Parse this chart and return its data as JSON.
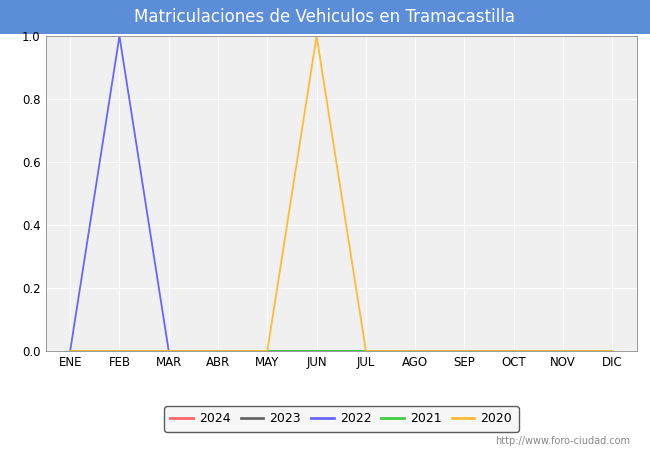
{
  "title": "Matriculaciones de Vehiculos en Tramacastilla",
  "title_bg_color": "#5b8dd9",
  "title_text_color": "#ffffff",
  "plot_bg_color": "#f0f0f0",
  "fig_bg_color": "#ffffff",
  "months": [
    "ENE",
    "FEB",
    "MAR",
    "ABR",
    "MAY",
    "JUN",
    "JUL",
    "AGO",
    "SEP",
    "OCT",
    "NOV",
    "DIC"
  ],
  "ylim": [
    0.0,
    1.0
  ],
  "yticks": [
    0.0,
    0.2,
    0.4,
    0.6,
    0.8,
    1.0
  ],
  "series": {
    "2024": {
      "color": "#ff6666",
      "data": [
        0,
        0,
        0,
        0,
        0,
        0,
        0,
        0,
        0,
        0,
        0,
        0
      ]
    },
    "2023": {
      "color": "#666666",
      "data": [
        0,
        0,
        0,
        0,
        0,
        0,
        0,
        0,
        0,
        0,
        0,
        0
      ]
    },
    "2022": {
      "color": "#6666ff",
      "data": [
        0,
        1,
        0,
        0,
        0,
        0,
        0,
        0,
        0,
        0,
        0,
        0
      ]
    },
    "2021": {
      "color": "#44cc44",
      "data": [
        0,
        0,
        0,
        0,
        0,
        0,
        0,
        0,
        0,
        0,
        0,
        0
      ]
    },
    "2020": {
      "color": "#ffbb33",
      "data": [
        0,
        0,
        0,
        0,
        0,
        1,
        0,
        0,
        0,
        0,
        0,
        0
      ]
    }
  },
  "legend_order": [
    "2024",
    "2023",
    "2022",
    "2021",
    "2020"
  ],
  "watermark": "http://www.foro-ciudad.com",
  "grid_color": "#ffffff",
  "title_fontsize": 12,
  "tick_fontsize": 8.5,
  "legend_fontsize": 9
}
